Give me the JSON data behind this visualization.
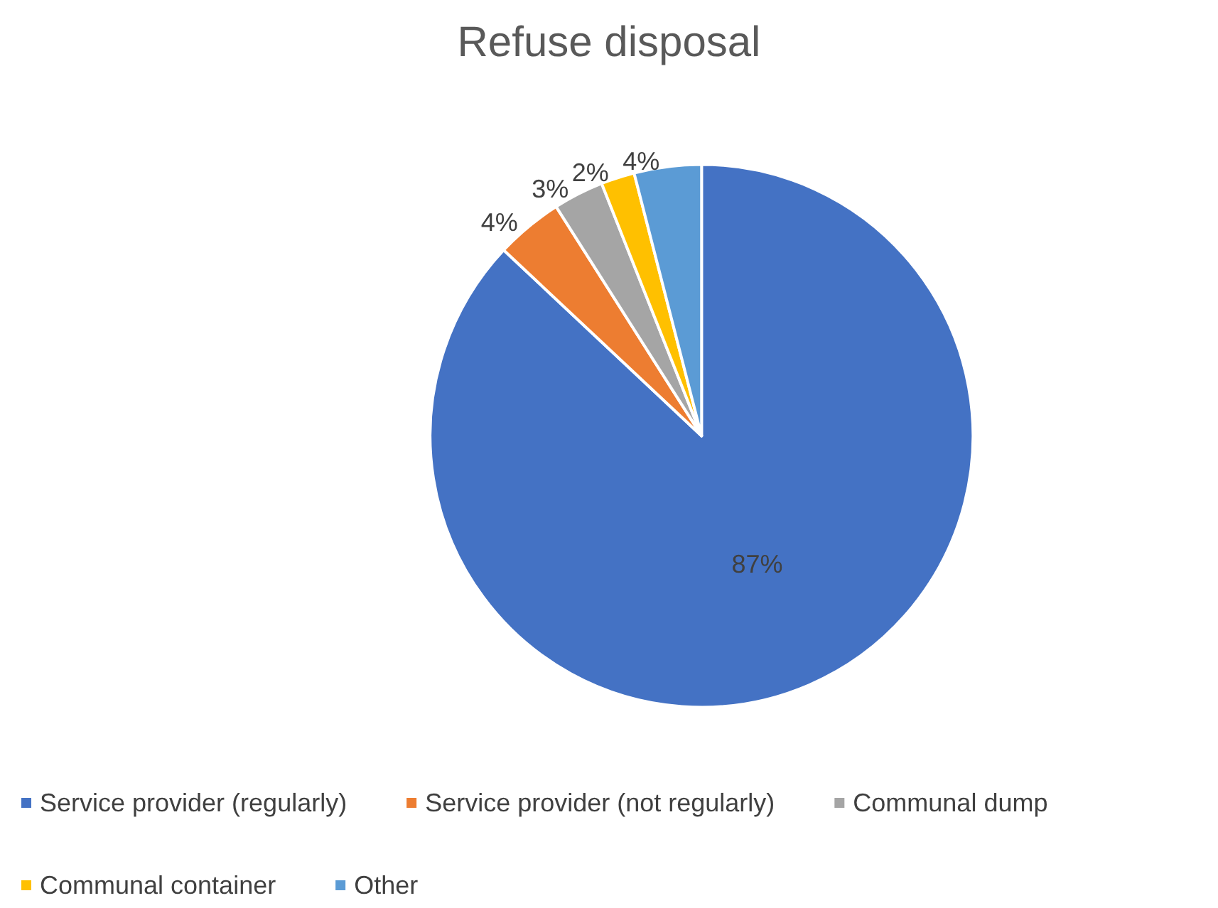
{
  "chart_data": {
    "type": "pie",
    "title": "Refuse disposal",
    "categories": [
      "Service provider (regularly)",
      "Service provider (not regularly)",
      "Communal dump",
      "Communal container",
      "Other"
    ],
    "values": [
      87,
      4,
      3,
      2,
      4
    ],
    "colors": [
      "#4472c4",
      "#ed7d31",
      "#a5a5a5",
      "#ffc000",
      "#5b9bd5"
    ],
    "value_labels": [
      "87%",
      "4%",
      "3%",
      "2%",
      "4%"
    ],
    "legend": "bottom"
  }
}
